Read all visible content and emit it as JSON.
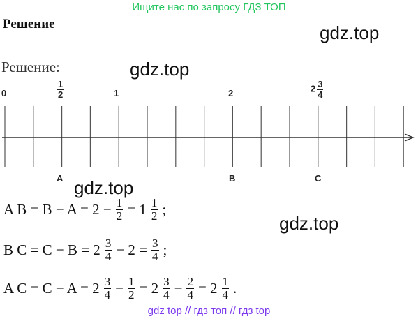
{
  "banner": "Ищите нас по запросу ГДЗ ТОП",
  "heading": "Решение",
  "watermarks": [
    "gdz.top",
    "gdz.top",
    "gdz.top",
    "gdz.top"
  ],
  "solution_label": "Решение:",
  "number_line": {
    "labels": [
      {
        "whole": "0"
      },
      {
        "num": "1",
        "den": "2"
      },
      {
        "whole": "1"
      },
      {
        "whole": "2"
      },
      {
        "whole": "2",
        "num": "3",
        "den": "4"
      }
    ],
    "points": [
      "A",
      "B",
      "C"
    ]
  },
  "equations": [
    [
      "A B = B − A = 2 −",
      {
        "num": "1",
        "den": "2"
      },
      "= 1",
      {
        "num": "1",
        "den": "2"
      },
      ";"
    ],
    [
      "B C = C − B = 2",
      {
        "num": "3",
        "den": "4"
      },
      "− 2 =",
      {
        "num": "3",
        "den": "4"
      },
      ";"
    ],
    [
      "A C = C − A = 2",
      {
        "num": "3",
        "den": "4"
      },
      "−",
      {
        "num": "1",
        "den": "2"
      },
      "= 2",
      {
        "num": "3",
        "den": "4"
      },
      "−",
      {
        "num": "2",
        "den": "4"
      },
      "= 2",
      {
        "num": "1",
        "den": "4"
      },
      "."
    ]
  ],
  "footer": "gdz top // гдз топ // гдз top"
}
